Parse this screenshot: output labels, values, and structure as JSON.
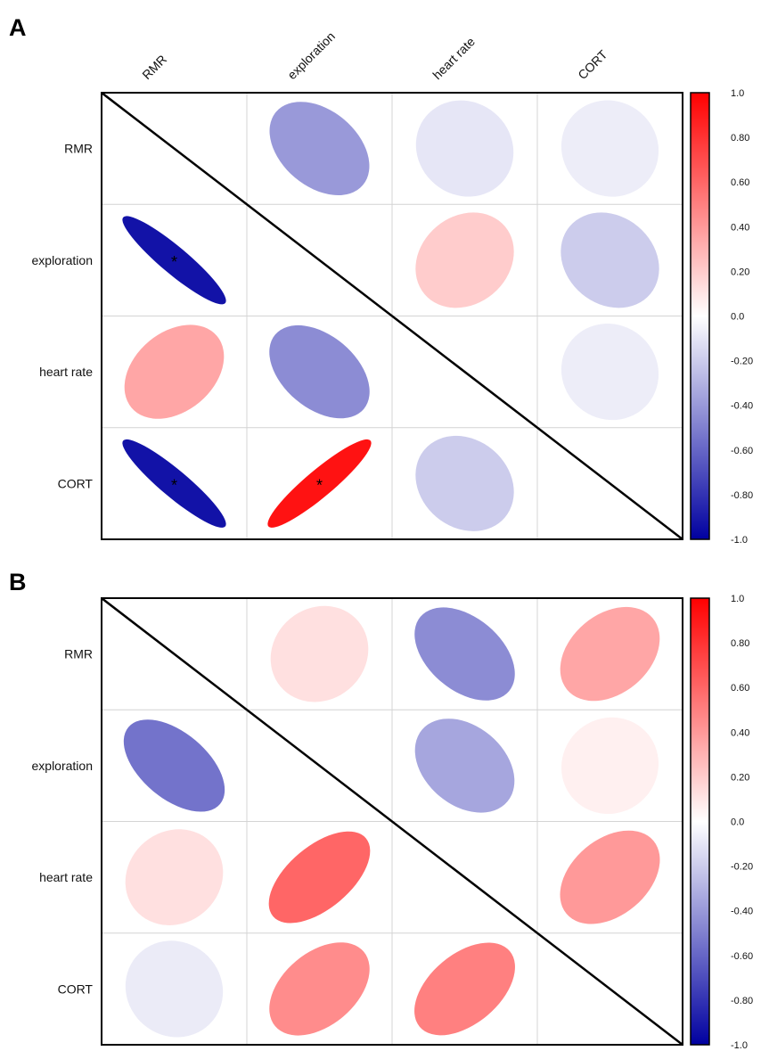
{
  "chart_data": [
    {
      "type": "heatmap",
      "panel": "A",
      "variables": [
        "RMR",
        "exploration",
        "heart rate",
        "CORT"
      ],
      "show_column_labels": true,
      "matrix": [
        [
          null,
          -0.4,
          -0.1,
          -0.07
        ],
        [
          -0.93,
          null,
          0.2,
          -0.2
        ],
        [
          0.35,
          -0.45,
          null,
          -0.07
        ],
        [
          -0.93,
          0.93,
          -0.2,
          null
        ]
      ],
      "significant": [
        [
          1,
          0
        ],
        [
          3,
          0
        ],
        [
          3,
          1
        ]
      ],
      "significance_marker": "*",
      "colorbar": {
        "min": -1.0,
        "max": 1.0,
        "ticks": [
          "1.0",
          "0.80",
          "0.60",
          "0.40",
          "0.20",
          "0.0",
          "-0.20",
          "-0.40",
          "-0.60",
          "-0.80",
          "-1.0"
        ],
        "colors": [
          "#0000a0",
          "#ffffff",
          "#ff0000"
        ]
      }
    },
    {
      "type": "heatmap",
      "panel": "B",
      "variables": [
        "RMR",
        "exploration",
        "heart rate",
        "CORT"
      ],
      "show_column_labels": false,
      "matrix": [
        [
          null,
          0.12,
          -0.45,
          0.35
        ],
        [
          -0.55,
          null,
          -0.35,
          0.06
        ],
        [
          0.12,
          0.6,
          null,
          0.4
        ],
        [
          -0.08,
          0.45,
          0.5,
          null
        ]
      ],
      "significant": [],
      "significance_marker": "*",
      "colorbar": {
        "min": -1.0,
        "max": 1.0,
        "ticks": [
          "1.0",
          "0.80",
          "0.60",
          "0.40",
          "0.20",
          "0.0",
          "-0.20",
          "-0.40",
          "-0.60",
          "-0.80",
          "-1.0"
        ],
        "colors": [
          "#0000a0",
          "#ffffff",
          "#ff0000"
        ]
      }
    }
  ]
}
